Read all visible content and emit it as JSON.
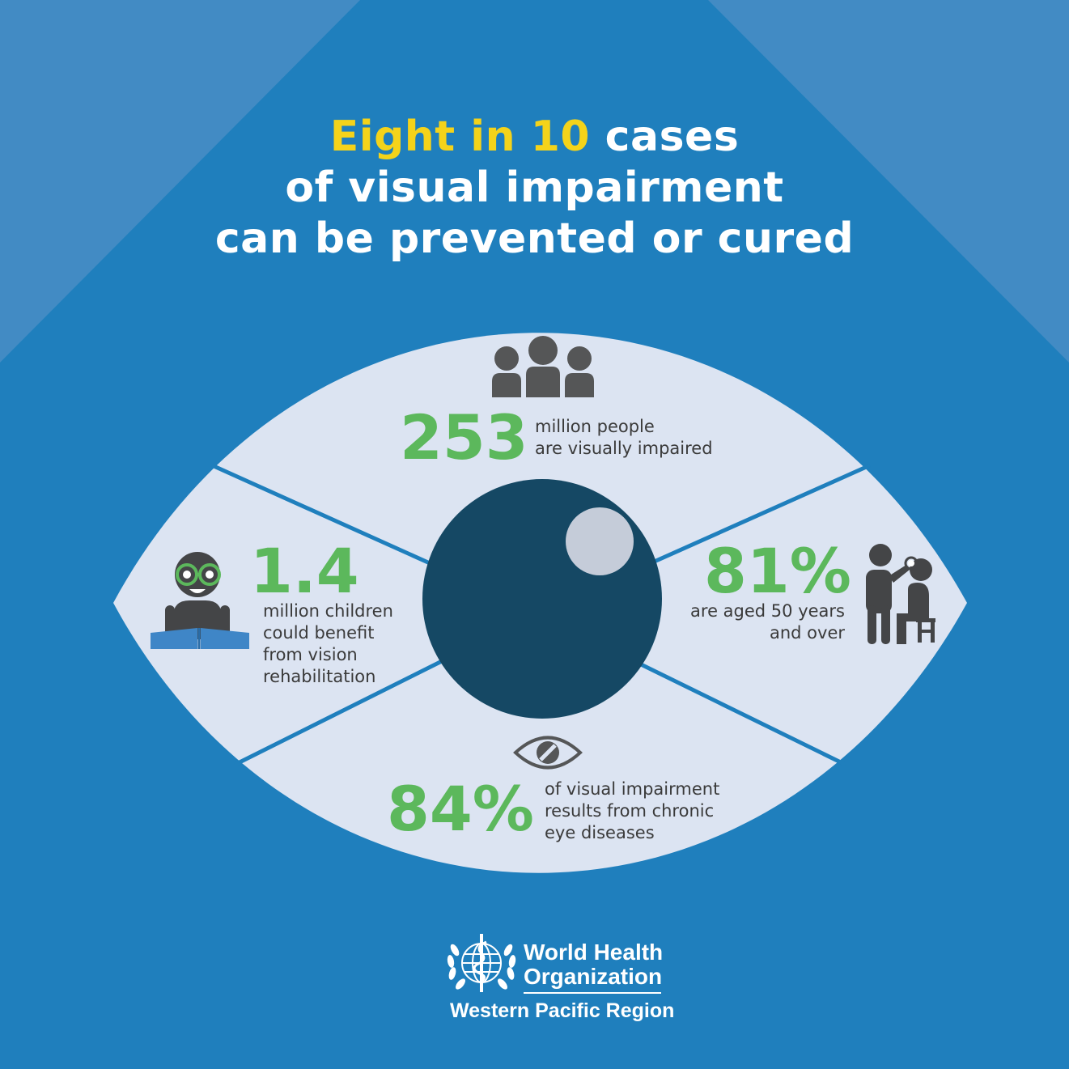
{
  "headline": {
    "highlight": "Eight in 10",
    "line1_rest": " cases",
    "line2": "of visual impairment",
    "line3": "can be prevented or cured"
  },
  "stats": {
    "top": {
      "number": "253",
      "line1": "million people",
      "line2": "are visually impaired",
      "icon": "people-group-icon"
    },
    "left": {
      "number": "1.4",
      "line1": "million children",
      "line2": "could benefit",
      "line3": "from vision",
      "line4": "rehabilitation",
      "icon": "child-reading-icon"
    },
    "right": {
      "number": "81%",
      "line1": "are aged 50 years",
      "line2": "and over",
      "icon": "eye-exam-icon"
    },
    "bottom": {
      "number": "84%",
      "line1": "of visual impairment",
      "line2": "results from chronic",
      "line3": "eye diseases",
      "icon": "crossed-eye-icon"
    }
  },
  "logo": {
    "line1": "World Health",
    "line2": "Organization",
    "line3": "Western Pacific Region"
  },
  "colors": {
    "background": "#1f7fbd",
    "highlight": "#f4d31a",
    "stat_green": "#5cb85c",
    "eye_white": "#dce4f2",
    "pupil": "#154864"
  }
}
